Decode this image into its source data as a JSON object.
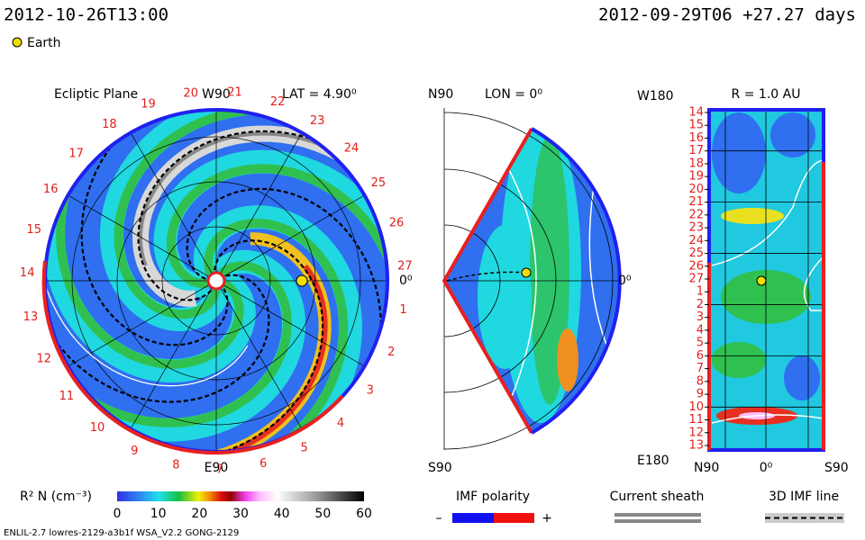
{
  "header": {
    "left": "2012-10-26T13:00",
    "right": "2012-09-29T06 +27.27 days",
    "earth": "Earth"
  },
  "ecliptic": {
    "title": "Ecliptic Plane",
    "top": "W90",
    "bottom": "E90",
    "lat": "LAT = 4.90⁰",
    "right": "0⁰",
    "numbers": [
      "1",
      "2",
      "3",
      "4",
      "5",
      "6",
      "7",
      "8",
      "9",
      "10",
      "11",
      "12",
      "13",
      "14",
      "15",
      "16",
      "17",
      "18",
      "19",
      "20",
      "21",
      "22",
      "23",
      "24",
      "25",
      "26",
      "27"
    ]
  },
  "meridional": {
    "top": "N90",
    "lon": "LON = 0⁰",
    "bottom": "S90",
    "right": "0⁰"
  },
  "radial": {
    "top_left": "W180",
    "title": "R = 1.0 AU",
    "bottom_left": "E180",
    "bottom": [
      "N90",
      "0⁰",
      "S90"
    ],
    "rows": [
      "14",
      "15",
      "16",
      "17",
      "18",
      "19",
      "20",
      "21",
      "22",
      "23",
      "24",
      "25",
      "26",
      "27",
      "1",
      "2",
      "3",
      "4",
      "5",
      "6",
      "7",
      "8",
      "9",
      "10",
      "11",
      "12",
      "13"
    ]
  },
  "colorbar": {
    "label": "R² N (cm⁻³)",
    "ticks": [
      "0",
      "10",
      "20",
      "30",
      "40",
      "50",
      "60"
    ]
  },
  "legend": {
    "imf": "IMF polarity",
    "minus": "–",
    "plus": "+",
    "sheath": "Current sheath",
    "line": "3D IMF line"
  },
  "footer": "ENLIL-2.7 lowres-2129-a3b1f WSA_V2.2 GONG-2129"
}
